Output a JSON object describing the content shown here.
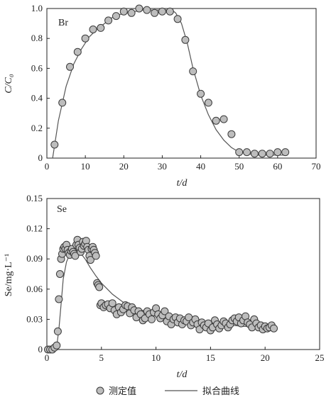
{
  "chart_data": [
    {
      "type": "scatter",
      "panel_label": "Br",
      "xlabel": "t/d",
      "ylabel": "C/C₀",
      "xlim": [
        0,
        70
      ],
      "ylim": [
        0,
        1.0
      ],
      "x_ticks": [
        "0",
        "10",
        "20",
        "30",
        "40",
        "50",
        "60",
        "70"
      ],
      "y_ticks": [
        "0",
        "0.2",
        "0.4",
        "0.6",
        "0.8",
        "1.0"
      ],
      "grid": false,
      "series": [
        {
          "kind": "points",
          "x": [
            2,
            4,
            6,
            8,
            10,
            12,
            14,
            16,
            18,
            20,
            22,
            24,
            26,
            28,
            30,
            32,
            34,
            36,
            38,
            40,
            42,
            44,
            46,
            48,
            50,
            52,
            54,
            56,
            58,
            60,
            62
          ],
          "y": [
            0.09,
            0.37,
            0.61,
            0.71,
            0.8,
            0.86,
            0.87,
            0.92,
            0.95,
            0.98,
            0.97,
            1.0,
            0.99,
            0.97,
            0.98,
            0.98,
            0.93,
            0.79,
            0.58,
            0.43,
            0.37,
            0.25,
            0.26,
            0.16,
            0.04,
            0.04,
            0.03,
            0.03,
            0.03,
            0.04,
            0.04
          ]
        },
        {
          "kind": "line",
          "x": [
            1.5,
            3,
            5,
            7,
            9,
            11,
            13,
            15,
            17,
            19,
            21,
            23,
            25,
            27,
            29,
            31,
            32.5,
            33.5,
            35,
            36.5,
            38,
            40,
            42,
            44,
            46,
            48,
            50,
            52,
            55,
            58,
            62
          ],
          "y": [
            0.0,
            0.25,
            0.48,
            0.63,
            0.73,
            0.81,
            0.86,
            0.9,
            0.94,
            0.96,
            0.97,
            0.98,
            0.99,
            0.99,
            0.99,
            0.99,
            0.99,
            0.97,
            0.9,
            0.77,
            0.6,
            0.42,
            0.29,
            0.19,
            0.12,
            0.07,
            0.04,
            0.03,
            0.02,
            0.02,
            0.02
          ]
        }
      ]
    },
    {
      "type": "scatter",
      "panel_label": "Se",
      "xlabel": "t/d",
      "ylabel": "Se/mg·L⁻¹",
      "xlim": [
        0,
        25
      ],
      "ylim": [
        0,
        0.15
      ],
      "x_ticks": [
        "0",
        "5",
        "10",
        "15",
        "20",
        "25"
      ],
      "y_ticks": [
        "0",
        "0.03",
        "0.06",
        "0.09",
        "0.12",
        "0.15"
      ],
      "grid": false,
      "series": [
        {
          "kind": "points",
          "x": [
            0.1,
            0.3,
            0.5,
            0.7,
            0.9,
            1.0,
            1.1,
            1.2,
            1.3,
            1.4,
            1.5,
            1.6,
            1.7,
            1.8,
            1.9,
            2.0,
            2.1,
            2.2,
            2.3,
            2.4,
            2.5,
            2.6,
            2.7,
            2.8,
            2.9,
            3.0,
            3.1,
            3.2,
            3.3,
            3.4,
            3.5,
            3.6,
            3.7,
            3.8,
            3.9,
            4.0,
            4.1,
            4.2,
            4.3,
            4.4,
            4.5,
            4.6,
            4.7,
            4.8,
            4.9,
            5.0,
            5.2,
            5.4,
            5.6,
            5.8,
            6.0,
            6.2,
            6.4,
            6.6,
            6.8,
            7.0,
            7.2,
            7.4,
            7.6,
            7.8,
            8.0,
            8.2,
            8.4,
            8.6,
            8.8,
            9.0,
            9.2,
            9.4,
            9.6,
            9.8,
            10.0,
            10.2,
            10.4,
            10.6,
            10.8,
            11.0,
            11.2,
            11.4,
            11.6,
            11.8,
            12.0,
            12.2,
            12.4,
            12.6,
            12.8,
            13.0,
            13.2,
            13.4,
            13.6,
            13.8,
            14.0,
            14.2,
            14.4,
            14.6,
            14.8,
            15.0,
            15.2,
            15.4,
            15.6,
            15.8,
            16.0,
            16.2,
            16.4,
            16.6,
            16.8,
            17.0,
            17.2,
            17.4,
            17.6,
            17.8,
            18.0,
            18.2,
            18.4,
            18.6,
            18.8,
            19.0,
            19.2,
            19.4,
            19.6,
            19.8,
            20.0,
            20.2,
            20.4,
            20.6,
            20.8
          ],
          "y": [
            0.0,
            0.0,
            0.0,
            0.002,
            0.004,
            0.018,
            0.05,
            0.075,
            0.09,
            0.095,
            0.1,
            0.102,
            0.1,
            0.104,
            0.099,
            0.096,
            0.094,
            0.098,
            0.1,
            0.097,
            0.095,
            0.093,
            0.104,
            0.109,
            0.104,
            0.101,
            0.097,
            0.1,
            0.107,
            0.103,
            0.105,
            0.108,
            0.102,
            0.099,
            0.093,
            0.089,
            0.1,
            0.102,
            0.099,
            0.096,
            0.093,
            0.066,
            0.064,
            0.062,
            0.044,
            0.046,
            0.042,
            0.044,
            0.045,
            0.041,
            0.046,
            0.039,
            0.035,
            0.042,
            0.037,
            0.04,
            0.044,
            0.043,
            0.036,
            0.042,
            0.039,
            0.032,
            0.038,
            0.035,
            0.029,
            0.031,
            0.038,
            0.035,
            0.03,
            0.037,
            0.041,
            0.035,
            0.031,
            0.034,
            0.038,
            0.028,
            0.033,
            0.025,
            0.03,
            0.032,
            0.027,
            0.031,
            0.025,
            0.029,
            0.028,
            0.032,
            0.024,
            0.027,
            0.03,
            0.025,
            0.02,
            0.027,
            0.024,
            0.022,
            0.026,
            0.019,
            0.022,
            0.029,
            0.025,
            0.021,
            0.024,
            0.028,
            0.026,
            0.022,
            0.025,
            0.029,
            0.031,
            0.028,
            0.032,
            0.026,
            0.029,
            0.033,
            0.027,
            0.025,
            0.022,
            0.03,
            0.026,
            0.022,
            0.024,
            0.02,
            0.023,
            0.021,
            0.022,
            0.024,
            0.021
          ]
        },
        {
          "kind": "line",
          "x": [
            0,
            0.5,
            0.9,
            1.1,
            1.3,
            1.5,
            1.8,
            2.1,
            2.5,
            3.0,
            3.5,
            4.0,
            4.5,
            5.0,
            6.0,
            7.0,
            8.0,
            9.0,
            10.0,
            12.0,
            14.0,
            16.0,
            18.0,
            20.0,
            21.0
          ],
          "y": [
            0.0,
            0.0,
            0.003,
            0.02,
            0.045,
            0.07,
            0.087,
            0.095,
            0.098,
            0.097,
            0.09,
            0.081,
            0.073,
            0.066,
            0.055,
            0.047,
            0.042,
            0.038,
            0.035,
            0.03,
            0.027,
            0.025,
            0.023,
            0.022,
            0.021
          ]
        }
      ]
    }
  ],
  "legend": {
    "marker_label": "测定值",
    "line_label": "拟合曲线"
  },
  "colors": {
    "marker_fill": "#bdbdbd",
    "marker_stroke": "#3a3a3a",
    "line": "#555555",
    "axis": "#222222"
  }
}
